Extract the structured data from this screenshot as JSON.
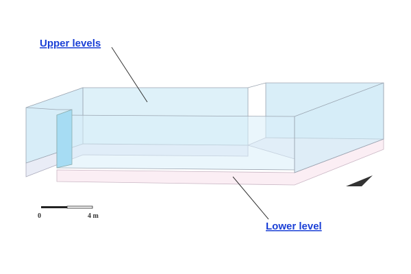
{
  "labels": {
    "upper": "Upper levels",
    "lower": "Lower level"
  },
  "scale_bar": {
    "start": "0",
    "end": "4 m"
  }
}
